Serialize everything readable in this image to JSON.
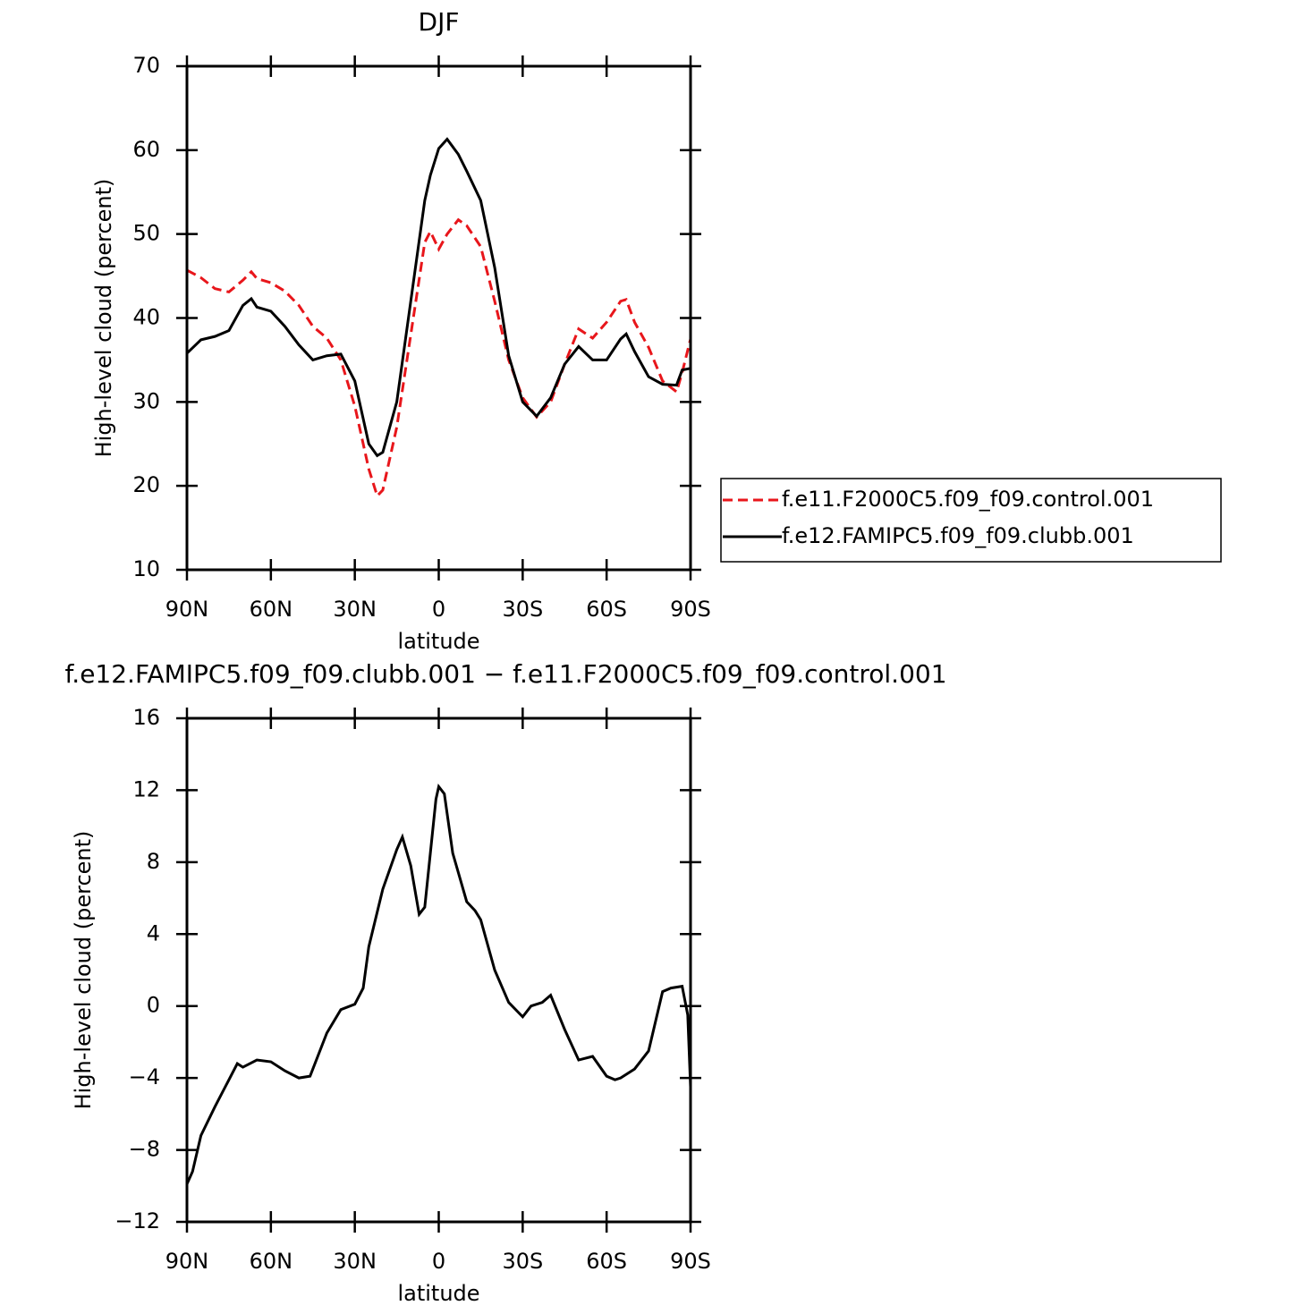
{
  "chart_data": [
    {
      "type": "line",
      "title": "DJF",
      "xlabel": "latitude",
      "ylabel": "High-level cloud (percent)",
      "legend": "right",
      "x": [
        90,
        85,
        80,
        75,
        70,
        67,
        65,
        60,
        55,
        50,
        45,
        40,
        35,
        30,
        25,
        22,
        20,
        15,
        10,
        5,
        3,
        0,
        -3,
        -7,
        -10,
        -15,
        -20,
        -25,
        -30,
        -35,
        -40,
        -45,
        -50,
        -55,
        -60,
        -65,
        -67,
        -70,
        -75,
        -80,
        -85,
        -87,
        -90
      ],
      "series": [
        {
          "name": "f.e11.F2000C5.f09_f09.control.001",
          "color": "#e8161b",
          "dash": true,
          "values": [
            45.7,
            44.8,
            43.5,
            43.1,
            44.5,
            45.5,
            44.7,
            44.2,
            43.2,
            41.5,
            39.0,
            37.6,
            35,
            29.5,
            22,
            18.8,
            19.5,
            27,
            38,
            49,
            50.3,
            48.2,
            50,
            51.7,
            51,
            48.5,
            42,
            35,
            30.5,
            28.2,
            30,
            34.5,
            38.7,
            37.6,
            39.5,
            42,
            42.2,
            39.5,
            36.5,
            32.5,
            31.2,
            33.5,
            37.5
          ]
        },
        {
          "name": "f.e12.FAMIPC5.f09_f09.clubb.001",
          "color": "#000000",
          "dash": false,
          "values": [
            35.8,
            37.4,
            37.8,
            38.5,
            41.5,
            42.3,
            41.3,
            40.8,
            39.0,
            36.8,
            35.0,
            35.5,
            35.7,
            32.5,
            25.0,
            23.6,
            24.0,
            30,
            42,
            54,
            57,
            60.2,
            61.3,
            59.5,
            57.5,
            54,
            46,
            35.5,
            30,
            28.3,
            30.5,
            34.5,
            36.6,
            35,
            35,
            37.5,
            38.1,
            36,
            33,
            32.1,
            32,
            33.8,
            34
          ]
        }
      ],
      "xlim": [
        90,
        -90
      ],
      "xticks": [
        {
          "value": 90,
          "label": "90N"
        },
        {
          "value": 60,
          "label": "60N"
        },
        {
          "value": 30,
          "label": "30N"
        },
        0,
        {
          "value": -30,
          "label": "30S"
        },
        {
          "value": -60,
          "label": "60S"
        },
        {
          "value": -90,
          "label": "90S"
        }
      ],
      "ylim": [
        10,
        70
      ],
      "yticks": [
        10,
        20,
        30,
        40,
        50,
        60,
        70
      ]
    },
    {
      "type": "line",
      "title": "f.e12.FAMIPC5.f09_f09.clubb.001 − f.e11.F2000C5.f09_f09.control.001",
      "xlabel": "latitude",
      "ylabel": "High-level cloud (percent)",
      "x": [
        90,
        88,
        85,
        80,
        75,
        72,
        70,
        65,
        60,
        55,
        50,
        46,
        40,
        35,
        30,
        27,
        25,
        20,
        15,
        13,
        10,
        7,
        5,
        3,
        1,
        0,
        -2,
        -5,
        -10,
        -13,
        -15,
        -20,
        -25,
        -30,
        -33,
        -37,
        -40,
        -45,
        -50,
        -55,
        -60,
        -63,
        -65,
        -70,
        -75,
        -80,
        -83,
        -87,
        -89,
        -90
      ],
      "series": [
        {
          "color": "#000000",
          "dash": false,
          "values": [
            -9.9,
            -9.2,
            -7.2,
            -5.6,
            -4.1,
            -3.2,
            -3.4,
            -3.0,
            -3.1,
            -3.6,
            -4.0,
            -3.9,
            -1.5,
            -0.2,
            0.1,
            1.0,
            3.3,
            6.5,
            8.7,
            9.4,
            7.8,
            5.1,
            5.5,
            8.5,
            11.5,
            12.2,
            11.8,
            8.5,
            5.8,
            5.3,
            4.8,
            2.0,
            0.2,
            -0.6,
            0.0,
            0.2,
            0.6,
            -1.3,
            -3.0,
            -2.8,
            -3.9,
            -4.1,
            -4.0,
            -3.5,
            -2.5,
            0.8,
            1.0,
            1.1,
            -0.5,
            -4.5
          ]
        }
      ],
      "xlim": [
        90,
        -90
      ],
      "xticks": [
        {
          "value": 90,
          "label": "90N"
        },
        {
          "value": 60,
          "label": "60N"
        },
        {
          "value": 30,
          "label": "30N"
        },
        0,
        {
          "value": -30,
          "label": "30S"
        },
        {
          "value": -60,
          "label": "60S"
        },
        {
          "value": -90,
          "label": "90S"
        }
      ],
      "ylim": [
        -12,
        16
      ],
      "yticks": [
        {
          "value": -12,
          "label": "−12"
        },
        {
          "value": -8,
          "label": "−8"
        },
        {
          "value": -4,
          "label": "−4"
        },
        0,
        4,
        8,
        12,
        16
      ]
    }
  ]
}
